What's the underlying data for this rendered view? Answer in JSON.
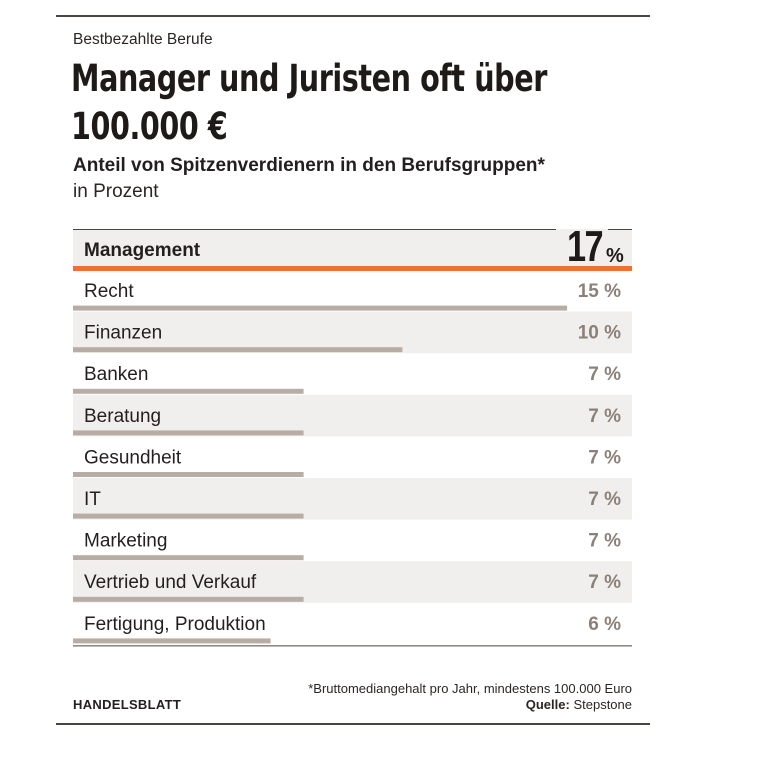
{
  "header": {
    "kicker": "Bestbezahlte Berufe",
    "headline": "Manager und Juristen oft über 100.000 €",
    "subtitle": "Anteil von Spitzenverdienern in den Berufsgruppen*",
    "unit_label": "in Prozent"
  },
  "footer": {
    "footnote": "*Bruttomediangehalt pro Jahr, mindestens 100.000 Euro",
    "source_label": "Quelle:",
    "source_value": "Stepstone",
    "brand": "HANDELSBLATT"
  },
  "colors": {
    "highlight_bar": "#ef7032",
    "bar": "#b8ada4",
    "stripe": "#f1efed",
    "value_muted": "#8c8179",
    "text": "#231f20"
  },
  "chart_data": {
    "type": "bar",
    "orientation": "horizontal",
    "unit": "%",
    "categories": [
      "Management",
      "Recht",
      "Finanzen",
      "Banken",
      "Beratung",
      "Gesundheit",
      "IT",
      "Marketing",
      "Vertrieb und Verkauf",
      "Fertigung, Produktion"
    ],
    "values": [
      17,
      15,
      10,
      7,
      7,
      7,
      7,
      7,
      7,
      6
    ],
    "value_labels": [
      "17",
      "15 %",
      "10 %",
      "7 %",
      "7 %",
      "7 %",
      "7 %",
      "7 %",
      "7 %",
      "6 %"
    ],
    "highlight_index": 0,
    "highlight_unit": "%",
    "xlim": [
      0,
      17
    ]
  }
}
